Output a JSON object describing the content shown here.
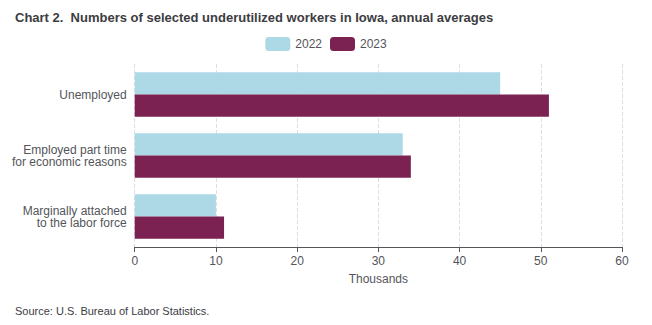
{
  "chart_data": {
    "type": "bar",
    "orientation": "horizontal",
    "title": "Chart 2.  Numbers of selected underutilized workers in Iowa, annual averages",
    "categories": [
      "Unemployed",
      "Employed part time\nfor economic reasons",
      "Marginally attached\nto the labor force"
    ],
    "series": [
      {
        "name": "2022",
        "color": "#add8e6",
        "values": [
          45,
          33,
          10
        ]
      },
      {
        "name": "2023",
        "color": "#7b2252",
        "values": [
          51,
          34,
          11
        ]
      }
    ],
    "xlabel": "Thousands",
    "xlim": [
      0,
      60
    ],
    "xticks": [
      0,
      10,
      20,
      30,
      40,
      50,
      60
    ],
    "grid": true,
    "legend": "top",
    "annotations": [
      "Source: U.S. Bureau of Labor Statistics."
    ]
  }
}
